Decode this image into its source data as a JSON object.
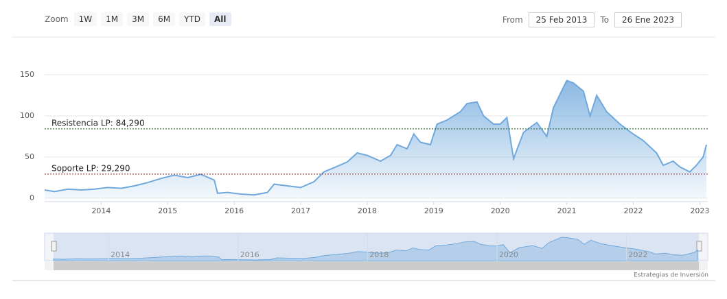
{
  "range_selector": {
    "label": "Zoom",
    "buttons": [
      "1W",
      "1M",
      "3M",
      "6M",
      "YTD",
      "All"
    ],
    "selected": 5
  },
  "date_range": {
    "from_label": "From",
    "from": "25 Feb 2013",
    "to_label": "To",
    "to": "26 Ene 2023"
  },
  "credits": "Estrategias de Inversión",
  "chart_data": {
    "type": "area",
    "color": "#6fa8dc",
    "x": [
      2013.15,
      2013.3,
      2013.5,
      2013.7,
      2013.9,
      2014.1,
      2014.3,
      2014.5,
      2014.7,
      2014.9,
      2015.1,
      2015.3,
      2015.5,
      2015.7,
      2015.75,
      2015.9,
      2016.1,
      2016.3,
      2016.5,
      2016.6,
      2016.8,
      2017.0,
      2017.2,
      2017.35,
      2017.5,
      2017.7,
      2017.85,
      2018.0,
      2018.2,
      2018.35,
      2018.45,
      2018.6,
      2018.7,
      2018.8,
      2018.95,
      2019.05,
      2019.2,
      2019.4,
      2019.5,
      2019.65,
      2019.75,
      2019.9,
      2020.0,
      2020.1,
      2020.2,
      2020.35,
      2020.55,
      2020.7,
      2020.8,
      2021.0,
      2021.1,
      2021.25,
      2021.35,
      2021.45,
      2021.6,
      2021.8,
      2022.0,
      2022.15,
      2022.35,
      2022.45,
      2022.6,
      2022.7,
      2022.85,
      2022.95,
      2023.05,
      2023.1
    ],
    "values": [
      10,
      8,
      11,
      10,
      11,
      13,
      12,
      15,
      19,
      24,
      28,
      25,
      29,
      22,
      6,
      7,
      5,
      4,
      7,
      17,
      15,
      13,
      20,
      32,
      37,
      44,
      55,
      52,
      45,
      52,
      65,
      60,
      78,
      68,
      65,
      90,
      95,
      105,
      115,
      117,
      100,
      90,
      90,
      98,
      48,
      80,
      92,
      75,
      110,
      143,
      140,
      130,
      100,
      125,
      105,
      90,
      78,
      70,
      55,
      40,
      45,
      38,
      32,
      40,
      50,
      65
    ],
    "xlim": [
      2013.15,
      2023.12
    ],
    "xticks": [
      2014,
      2015,
      2016,
      2017,
      2018,
      2019,
      2020,
      2021,
      2022,
      2023
    ],
    "ylim": [
      0,
      160
    ],
    "yticks": [
      0,
      50,
      100,
      150
    ],
    "grid": true,
    "plot_lines": [
      {
        "value": 84.29,
        "label": "Resistencia LP: 84,290",
        "color": "#1b5e20"
      },
      {
        "value": 29.29,
        "label": "Soporte LP: 29,290",
        "color": "#8b1a1a"
      }
    ]
  }
}
